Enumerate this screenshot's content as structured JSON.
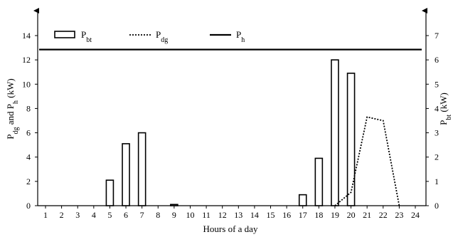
{
  "chart_data": {
    "type": "bar",
    "x": [
      1,
      2,
      3,
      4,
      5,
      6,
      7,
      8,
      9,
      10,
      11,
      12,
      13,
      14,
      15,
      16,
      17,
      18,
      19,
      20,
      21,
      22,
      23,
      24
    ],
    "xlabel": "Hours of a day",
    "ylabel_left": {
      "main": "P",
      "sub1": "dg",
      "mid": " and P",
      "sub2": "h",
      "unit": " (kW)"
    },
    "ylabel_right": {
      "main": "P",
      "sub": "bt",
      "unit": " (kW)"
    },
    "ylim_left": [
      0,
      14
    ],
    "yticks_left": [
      0,
      2,
      4,
      6,
      8,
      10,
      12,
      14
    ],
    "ylim_right": [
      0,
      7
    ],
    "yticks_right": [
      0,
      1,
      2,
      3,
      4,
      5,
      6,
      7
    ],
    "grid": false,
    "legend_position": "top-left",
    "series": [
      {
        "name": "P",
        "sub": "bt",
        "kind": "bar",
        "axis": "right",
        "values": [
          0,
          0,
          0,
          0,
          1.05,
          2.55,
          3.0,
          0,
          0.05,
          0,
          0,
          0,
          0,
          0,
          0,
          0,
          0.45,
          1.95,
          6.0,
          5.45,
          0,
          0,
          0,
          0
        ]
      },
      {
        "name": "P",
        "sub": "dg",
        "kind": "line",
        "style": "dotted",
        "axis": "left",
        "points": [
          [
            19,
            0
          ],
          [
            20,
            1.1
          ],
          [
            21,
            7.3
          ],
          [
            22,
            7.0
          ],
          [
            23,
            0
          ]
        ]
      },
      {
        "name": "P",
        "sub": "h",
        "kind": "line",
        "style": "solid",
        "axis": "left",
        "points": [
          [
            0.6,
            12.85
          ],
          [
            24.4,
            12.85
          ]
        ]
      }
    ]
  }
}
